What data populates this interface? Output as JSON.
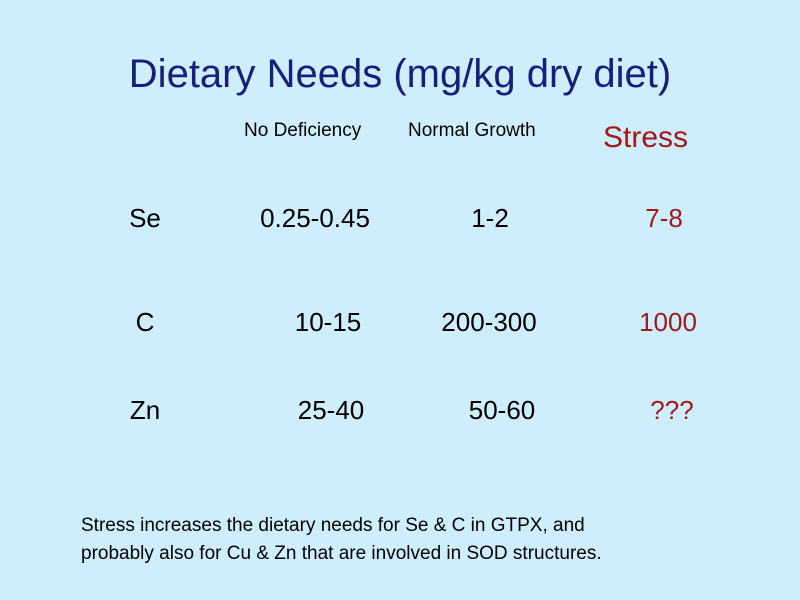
{
  "title": "Dietary Needs (mg/kg dry diet)",
  "headers": {
    "no_deficiency": "No Deficiency",
    "normal_growth": "Normal Growth",
    "stress": "Stress"
  },
  "rows": [
    {
      "element": "Se",
      "no_deficiency": "0.25-0.45",
      "normal_growth": "1-2",
      "stress": "7-8"
    },
    {
      "element": "C",
      "no_deficiency": "10-15",
      "normal_growth": "200-300",
      "stress": "1000"
    },
    {
      "element": "Zn",
      "no_deficiency": "25-40",
      "normal_growth": "50-60",
      "stress": "???"
    }
  ],
  "note": {
    "line1": "Stress increases the dietary needs for Se & C in GTPX, and",
    "line2": "probably also for Cu & Zn that are involved in SOD structures."
  },
  "colors": {
    "background": "#cdeefa",
    "title": "#16207a",
    "stress": "#a31919",
    "text": "#000000"
  }
}
